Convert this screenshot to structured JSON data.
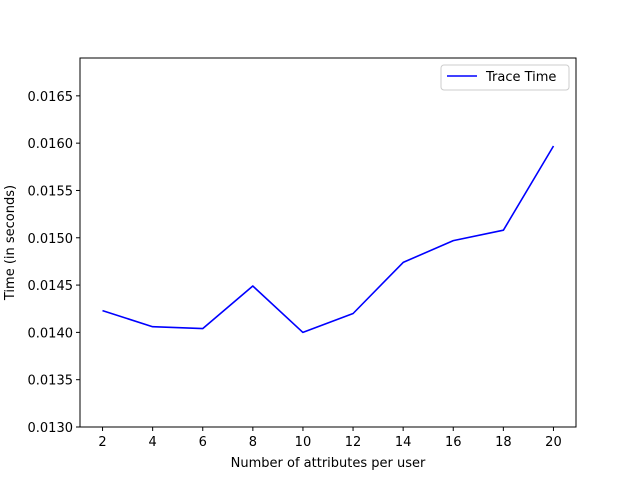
{
  "chart_data": {
    "type": "line",
    "title": "",
    "xlabel": "Number of attributes per user",
    "ylabel": "Time (in seconds)",
    "x": [
      2,
      4,
      6,
      8,
      10,
      12,
      14,
      16,
      18,
      20
    ],
    "x_ticks": [
      "2",
      "4",
      "6",
      "8",
      "10",
      "12",
      "14",
      "16",
      "18",
      "20"
    ],
    "xlim": [
      1.1,
      20.9
    ],
    "ylim": [
      0.013,
      0.0169
    ],
    "y_ticks": [
      0.013,
      0.0135,
      0.014,
      0.0145,
      0.015,
      0.0155,
      0.016,
      0.0165
    ],
    "y_tick_labels": [
      "0.0130",
      "0.0135",
      "0.0140",
      "0.0145",
      "0.0150",
      "0.0155",
      "0.0160",
      "0.0165"
    ],
    "series": [
      {
        "name": "Trace Time",
        "color": "#0000ff",
        "values": [
          0.01423,
          0.01406,
          0.01404,
          0.01449,
          0.014,
          0.0142,
          0.01474,
          0.01497,
          0.01508,
          0.01597
        ]
      }
    ],
    "legend": {
      "position": "top-right",
      "entries": [
        "Trace Time"
      ]
    },
    "grid": false
  }
}
